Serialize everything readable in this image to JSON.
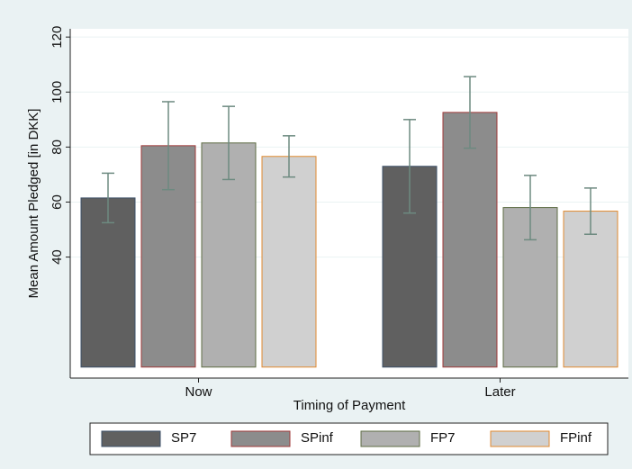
{
  "chart_data": {
    "type": "bar",
    "categories": [
      "Now",
      "Later"
    ],
    "xlabel": "Timing of Payment",
    "ylabel": "Mean Amount Pledged [in DKK]",
    "ylim": [
      -4,
      123
    ],
    "yticks": [
      40,
      60,
      80,
      100,
      120
    ],
    "grid": true,
    "legend": "bottom",
    "error_color": "#6d8a80",
    "series": [
      {
        "name": "SP7",
        "color": "#606060",
        "edge": "#3d5068",
        "values": [
          61.5,
          73
        ],
        "errors": [
          9,
          17
        ]
      },
      {
        "name": "SPinf",
        "color": "#8c8c8c",
        "edge": "#a03a3a",
        "values": [
          80.5,
          92.6
        ],
        "errors": [
          16,
          13
        ]
      },
      {
        "name": "FP7",
        "color": "#b0b0b0",
        "edge": "#5e6c44",
        "values": [
          81.5,
          58
        ],
        "errors": [
          13.3,
          11.7
        ]
      },
      {
        "name": "FPinf",
        "color": "#d0d0d0",
        "edge": "#e08a30",
        "values": [
          76.6,
          56.7
        ],
        "errors": [
          7.5,
          8.4
        ]
      }
    ]
  }
}
